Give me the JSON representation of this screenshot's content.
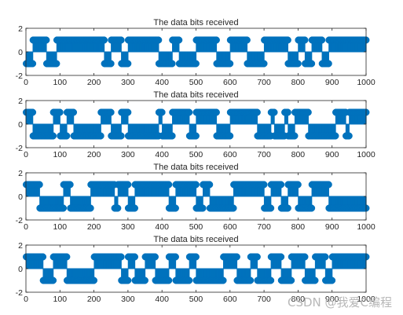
{
  "colors": {
    "series": "#0072BD",
    "axis": "#262626",
    "background": "#ffffff"
  },
  "watermark": "CSDN @我爱C编程",
  "chart_data": [
    {
      "type": "stem",
      "title": "The data bits received",
      "xlim": [
        0,
        1000
      ],
      "ylim": [
        -2,
        2
      ],
      "xticks": [
        "0",
        "100",
        "200",
        "300",
        "400",
        "500",
        "600",
        "700",
        "800",
        "900",
        "1000"
      ],
      "yticks": [
        "2",
        "0",
        "-2"
      ],
      "bit_run_ends": [
        20,
        60,
        90,
        230,
        250,
        280,
        300,
        390,
        430,
        450,
        500,
        560,
        600,
        650,
        700,
        770,
        800,
        820,
        840,
        870,
        890,
        910,
        1000
      ],
      "bit_values": [
        -1,
        1,
        -1,
        1,
        -1,
        1,
        -1,
        1,
        -1,
        1,
        -1,
        1,
        -1,
        1,
        -1,
        1,
        -1,
        1,
        -1,
        1,
        -1,
        1,
        1
      ]
    },
    {
      "type": "stem",
      "title": "The data bits received",
      "xlim": [
        0,
        1000
      ],
      "ylim": [
        -2,
        2
      ],
      "xticks": [
        "0",
        "100",
        "200",
        "300",
        "400",
        "500",
        "600",
        "700",
        "800",
        "900",
        "1000"
      ],
      "yticks": [
        "2",
        "0",
        "-2"
      ],
      "bit_run_ends": [
        20,
        80,
        100,
        120,
        140,
        220,
        250,
        280,
        300,
        390,
        400,
        430,
        480,
        500,
        560,
        600,
        680,
        720,
        730,
        760,
        770,
        790,
        830,
        910,
        940,
        950,
        960,
        1000
      ],
      "bit_values": [
        1,
        -1,
        1,
        -1,
        1,
        -1,
        1,
        -1,
        1,
        -1,
        1,
        -1,
        1,
        -1,
        1,
        -1,
        1,
        -1,
        1,
        -1,
        1,
        -1,
        1,
        -1,
        1,
        -1,
        1,
        1
      ]
    },
    {
      "type": "stem",
      "title": "The data bits received",
      "xlim": [
        0,
        1000
      ],
      "ylim": [
        -2,
        2
      ],
      "xticks": [
        "0",
        "100",
        "200",
        "300",
        "400",
        "500",
        "600",
        "700",
        "800",
        "900",
        "1000"
      ],
      "yticks": [
        "2",
        "0",
        "-2"
      ],
      "bit_run_ends": [
        40,
        110,
        130,
        190,
        260,
        270,
        300,
        320,
        420,
        440,
        500,
        520,
        540,
        610,
        700,
        720,
        750,
        770,
        800,
        840,
        890,
        900,
        1000
      ],
      "bit_values": [
        1,
        -1,
        1,
        -1,
        1,
        -1,
        1,
        -1,
        1,
        -1,
        1,
        -1,
        1,
        -1,
        1,
        -1,
        1,
        -1,
        1,
        -1,
        1,
        -1,
        -1
      ]
    },
    {
      "type": "stem",
      "title": "The data bits received",
      "xlim": [
        0,
        1000
      ],
      "ylim": [
        -2,
        2
      ],
      "xticks": [
        "0",
        "100",
        "200",
        "300",
        "400",
        "500",
        "600",
        "700",
        "800",
        "900",
        "1000"
      ],
      "yticks": [
        "2",
        "0",
        "-2"
      ],
      "bit_run_ends": [
        50,
        80,
        120,
        200,
        280,
        300,
        320,
        350,
        380,
        420,
        440,
        480,
        500,
        580,
        620,
        660,
        680,
        720,
        750,
        780,
        820,
        850,
        880,
        900,
        960,
        1000
      ],
      "bit_values": [
        1,
        -1,
        1,
        -1,
        1,
        -1,
        1,
        -1,
        1,
        -1,
        1,
        -1,
        1,
        -1,
        1,
        -1,
        1,
        -1,
        1,
        -1,
        1,
        -1,
        1,
        -1,
        1,
        1
      ]
    }
  ]
}
